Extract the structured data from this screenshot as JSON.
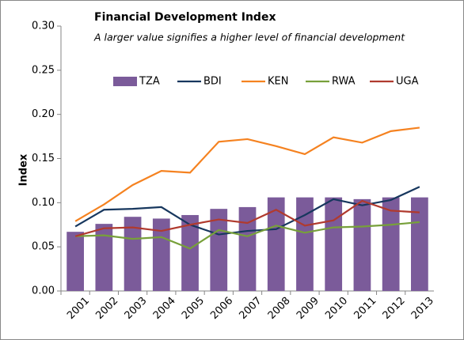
{
  "chart_data": {
    "type": "combo",
    "title": "Financial Development Index",
    "subtitle": "A larger value signifies a higher level of financial development",
    "y_label": "Index",
    "categories": [
      "2001",
      "2002",
      "2003",
      "2004",
      "2005",
      "2006",
      "2007",
      "2008",
      "2009",
      "2010",
      "2011",
      "2012",
      "2013"
    ],
    "series": [
      {
        "name": "TZA",
        "type": "bar",
        "color": "#7b5b9a",
        "values": [
          0.067,
          0.076,
          0.084,
          0.082,
          0.086,
          0.093,
          0.095,
          0.106,
          0.106,
          0.106,
          0.104,
          0.106,
          0.106
        ]
      },
      {
        "name": "BDI",
        "type": "line",
        "color": "#17375e",
        "values": [
          0.073,
          0.092,
          0.093,
          0.095,
          0.075,
          0.064,
          0.068,
          0.07,
          0.086,
          0.104,
          0.097,
          0.103,
          0.118
        ]
      },
      {
        "name": "KEN",
        "type": "line",
        "color": "#f58220",
        "values": [
          0.079,
          0.098,
          0.12,
          0.136,
          0.134,
          0.169,
          0.172,
          0.164,
          0.155,
          0.174,
          0.168,
          0.181,
          0.185
        ]
      },
      {
        "name": "RWA",
        "type": "line",
        "color": "#77a03a",
        "values": [
          0.062,
          0.063,
          0.059,
          0.061,
          0.048,
          0.069,
          0.062,
          0.074,
          0.066,
          0.072,
          0.073,
          0.075,
          0.078
        ]
      },
      {
        "name": "UGA",
        "type": "line",
        "color": "#b03a2e",
        "values": [
          0.062,
          0.071,
          0.072,
          0.068,
          0.075,
          0.081,
          0.077,
          0.092,
          0.074,
          0.08,
          0.102,
          0.091,
          0.089
        ]
      }
    ],
    "ylim": [
      0,
      0.3
    ],
    "yticks": [
      {
        "value": 0,
        "label": "0.00"
      },
      {
        "value": 0.05,
        "label": "0.05"
      },
      {
        "value": 0.1,
        "label": "0.10"
      },
      {
        "value": 0.15,
        "label": "0.15"
      },
      {
        "value": 0.2,
        "label": "0.20"
      },
      {
        "value": 0.25,
        "label": "0.25"
      },
      {
        "value": 0.3,
        "label": "0.30"
      }
    ],
    "legend": "top",
    "grid": false
  }
}
